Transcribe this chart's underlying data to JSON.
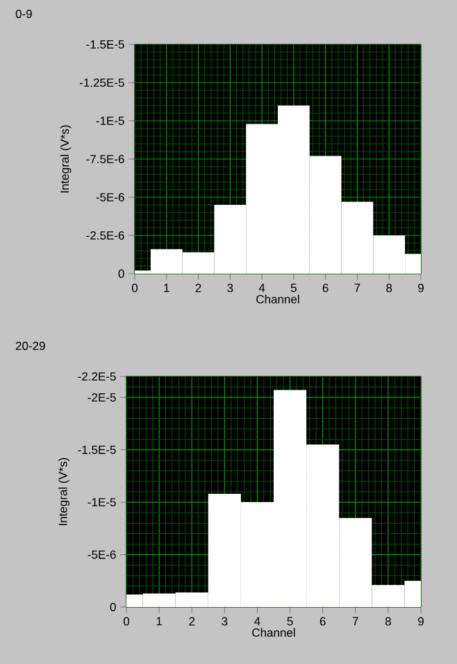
{
  "chart_data": [
    {
      "type": "bar",
      "title": "0-9",
      "xlabel": "Channel",
      "ylabel": "Integral (V*s)",
      "x": [
        0,
        1,
        2,
        3,
        4,
        5,
        6,
        7,
        8,
        9
      ],
      "values": [
        -2e-07,
        -1.6e-06,
        -1.4e-06,
        -4.5e-06,
        -9.8e-06,
        -1.1e-05,
        -7.7e-06,
        -4.7e-06,
        -2.5e-06,
        -1.3e-06
      ],
      "color": "#ffffff",
      "xlim": [
        0,
        9
      ],
      "xticks": [
        0,
        1,
        2,
        3,
        4,
        5,
        6,
        7,
        8,
        9,
        {
          "value": 0.2,
          "label": null
        },
        {
          "value": 0.4,
          "label": null
        },
        {
          "value": 0.6,
          "label": null
        },
        {
          "value": 0.8,
          "label": null
        },
        {
          "value": 1.2,
          "label": null
        },
        {
          "value": 1.4,
          "label": null
        },
        {
          "value": 1.6,
          "label": null
        },
        {
          "value": 1.8,
          "label": null
        },
        {
          "value": 2.2,
          "label": null
        },
        {
          "value": 2.4,
          "label": null
        },
        {
          "value": 2.6,
          "label": null
        },
        {
          "value": 2.8,
          "label": null
        },
        {
          "value": 3.2,
          "label": null
        },
        {
          "value": 3.4,
          "label": null
        },
        {
          "value": 3.6,
          "label": null
        },
        {
          "value": 3.8,
          "label": null
        },
        {
          "value": 4.2,
          "label": null
        },
        {
          "value": 4.4,
          "label": null
        },
        {
          "value": 4.6,
          "label": null
        },
        {
          "value": 4.8,
          "label": null
        },
        {
          "value": 5.2,
          "label": null
        },
        {
          "value": 5.4,
          "label": null
        },
        {
          "value": 5.6,
          "label": null
        },
        {
          "value": 5.8,
          "label": null
        },
        {
          "value": 6.2,
          "label": null
        },
        {
          "value": 6.4,
          "label": null
        },
        {
          "value": 6.6,
          "label": null
        },
        {
          "value": 6.8,
          "label": null
        },
        {
          "value": 7.2,
          "label": null
        },
        {
          "value": 7.4,
          "label": null
        },
        {
          "value": 7.6,
          "label": null
        },
        {
          "value": 7.8,
          "label": null
        },
        {
          "value": 8.2,
          "label": null
        },
        {
          "value": 8.4,
          "label": null
        },
        {
          "value": 8.6,
          "label": null
        },
        {
          "value": 8.8,
          "label": null
        }
      ],
      "ylim": [
        0,
        -1.5e-05
      ],
      "yticks": [
        0,
        {
          "value": -2.5e-06,
          "label": "-2.5E-6"
        },
        {
          "value": -5e-06,
          "label": "-5E-6"
        },
        {
          "value": -7.5e-06,
          "label": "-7.5E-6"
        },
        {
          "value": -1e-05,
          "label": "-1E-5"
        },
        {
          "value": -1.25e-05,
          "label": "-1.25E-5"
        },
        {
          "value": -1.5e-05,
          "label": "-1.5E-5"
        },
        {
          "value": -5e-07,
          "label": null
        },
        {
          "value": -1e-06,
          "label": null
        },
        {
          "value": -1.5e-06,
          "label": null
        },
        {
          "value": -2e-06,
          "label": null
        },
        {
          "value": -3e-06,
          "label": null
        },
        {
          "value": -3.5e-06,
          "label": null
        },
        {
          "value": -4e-06,
          "label": null
        },
        {
          "value": -4.5e-06,
          "label": null
        },
        {
          "value": -5.5e-06,
          "label": null
        },
        {
          "value": -6e-06,
          "label": null
        },
        {
          "value": -6.5e-06,
          "label": null
        },
        {
          "value": -7e-06,
          "label": null
        },
        {
          "value": -8e-06,
          "label": null
        },
        {
          "value": -8.5e-06,
          "label": null
        },
        {
          "value": -9e-06,
          "label": null
        },
        {
          "value": -9.5e-06,
          "label": null
        },
        {
          "value": -1.05e-05,
          "label": null
        },
        {
          "value": -1.1e-05,
          "label": null
        },
        {
          "value": -1.15e-05,
          "label": null
        },
        {
          "value": -1.2e-05,
          "label": null
        },
        {
          "value": -1.3e-05,
          "label": null
        },
        {
          "value": -1.35e-05,
          "label": null
        },
        {
          "value": -1.4e-05,
          "label": null
        },
        {
          "value": -1.45e-05,
          "label": null
        }
      ],
      "grid": true
    },
    {
      "type": "bar",
      "title": "20-29",
      "xlabel": "Channel",
      "ylabel": "Integral (V*s)",
      "x": [
        0,
        1,
        2,
        3,
        4,
        5,
        6,
        7,
        8,
        9
      ],
      "values": [
        -1.2e-06,
        -1.3e-06,
        -1.4e-06,
        -1.08e-05,
        -1e-05,
        -2.07e-05,
        -1.55e-05,
        -8.5e-06,
        -2.1e-06,
        -2.5e-06
      ],
      "color": "#ffffff",
      "xlim": [
        0,
        9
      ],
      "xticks": [
        0,
        1,
        2,
        3,
        4,
        5,
        6,
        7,
        8,
        9,
        {
          "value": 0.2,
          "label": null
        },
        {
          "value": 0.4,
          "label": null
        },
        {
          "value": 0.6,
          "label": null
        },
        {
          "value": 0.8,
          "label": null
        },
        {
          "value": 1.2,
          "label": null
        },
        {
          "value": 1.4,
          "label": null
        },
        {
          "value": 1.6,
          "label": null
        },
        {
          "value": 1.8,
          "label": null
        },
        {
          "value": 2.2,
          "label": null
        },
        {
          "value": 2.4,
          "label": null
        },
        {
          "value": 2.6,
          "label": null
        },
        {
          "value": 2.8,
          "label": null
        },
        {
          "value": 3.2,
          "label": null
        },
        {
          "value": 3.4,
          "label": null
        },
        {
          "value": 3.6,
          "label": null
        },
        {
          "value": 3.8,
          "label": null
        },
        {
          "value": 4.2,
          "label": null
        },
        {
          "value": 4.4,
          "label": null
        },
        {
          "value": 4.6,
          "label": null
        },
        {
          "value": 4.8,
          "label": null
        },
        {
          "value": 5.2,
          "label": null
        },
        {
          "value": 5.4,
          "label": null
        },
        {
          "value": 5.6,
          "label": null
        },
        {
          "value": 5.8,
          "label": null
        },
        {
          "value": 6.2,
          "label": null
        },
        {
          "value": 6.4,
          "label": null
        },
        {
          "value": 6.6,
          "label": null
        },
        {
          "value": 6.8,
          "label": null
        },
        {
          "value": 7.2,
          "label": null
        },
        {
          "value": 7.4,
          "label": null
        },
        {
          "value": 7.6,
          "label": null
        },
        {
          "value": 7.8,
          "label": null
        },
        {
          "value": 8.2,
          "label": null
        },
        {
          "value": 8.4,
          "label": null
        },
        {
          "value": 8.6,
          "label": null
        },
        {
          "value": 8.8,
          "label": null
        }
      ],
      "ylim": [
        0,
        -2.2e-05
      ],
      "yticks": [
        0,
        {
          "value": -5e-06,
          "label": "-5E-6"
        },
        {
          "value": -1e-05,
          "label": "-1E-5"
        },
        {
          "value": -1.5e-05,
          "label": "-1.5E-5"
        },
        {
          "value": -2e-05,
          "label": "-2E-5"
        },
        {
          "value": -2.2e-05,
          "label": "-2.2E-5"
        },
        {
          "value": -1e-06,
          "label": null
        },
        {
          "value": -2e-06,
          "label": null
        },
        {
          "value": -3e-06,
          "label": null
        },
        {
          "value": -4e-06,
          "label": null
        },
        {
          "value": -6e-06,
          "label": null
        },
        {
          "value": -7e-06,
          "label": null
        },
        {
          "value": -8e-06,
          "label": null
        },
        {
          "value": -9e-06,
          "label": null
        },
        {
          "value": -1.1e-05,
          "label": null
        },
        {
          "value": -1.2e-05,
          "label": null
        },
        {
          "value": -1.3e-05,
          "label": null
        },
        {
          "value": -1.4e-05,
          "label": null
        },
        {
          "value": -1.6e-05,
          "label": null
        },
        {
          "value": -1.7e-05,
          "label": null
        },
        {
          "value": -1.8e-05,
          "label": null
        },
        {
          "value": -1.9e-05,
          "label": null
        },
        {
          "value": -2.1e-05,
          "label": null
        }
      ],
      "grid": true
    }
  ]
}
